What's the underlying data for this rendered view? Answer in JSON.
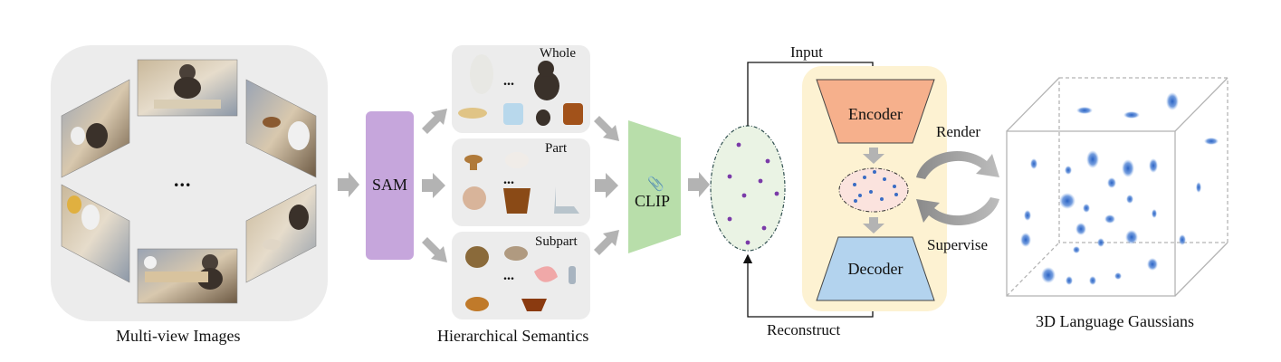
{
  "figure": {
    "multiview": {
      "caption": "Multi-view Images",
      "ellipsis": "..."
    },
    "sam": {
      "label": "SAM"
    },
    "hierarchy": {
      "caption": "Hierarchical Semantics",
      "levels": [
        {
          "label": "Whole",
          "ellipsis": "..."
        },
        {
          "label": "Part",
          "ellipsis": "..."
        },
        {
          "label": "Subpart",
          "ellipsis": "..."
        }
      ]
    },
    "clip": {
      "label": "CLIP"
    },
    "autoencoder": {
      "encoder": "Encoder",
      "decoder": "Decoder",
      "input": "Input",
      "reconstruct": "Reconstruct"
    },
    "loop": {
      "render": "Render",
      "supervise": "Supervise"
    },
    "gaussians": {
      "caption": "3D Language Gaussians"
    },
    "colors": {
      "sam": "#c6a6dc",
      "clip": "#b8deaa",
      "encoder": "#f6b08c",
      "decoder": "#b3d3ee",
      "ae_panel": "#fdf2d2",
      "latent": "#fbe3de",
      "gaussian": "#2a62c4",
      "feature_dot": "#7a3aa8",
      "latent_dot": "#3a6cc4",
      "panel_gray": "#ececec",
      "arrow_gray": "#b3b3b3"
    }
  }
}
